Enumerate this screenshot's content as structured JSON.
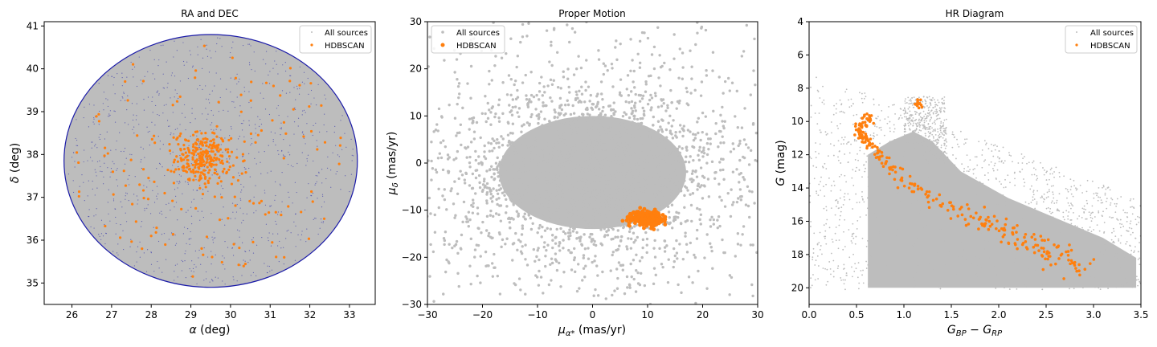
{
  "colors": {
    "all_sources": "#bdbdbd",
    "all_sources_edge_ra_dec": "#1a1aa8",
    "hdbscan": "#ff7f0e",
    "axes": "#000000",
    "background": "#ffffff"
  },
  "chart_data": [
    {
      "type": "scatter",
      "title": "RA and DEC",
      "xlabel": "α (deg)",
      "ylabel": "δ (deg)",
      "xlim": [
        25.3,
        33.65
      ],
      "ylim": [
        34.5,
        41.1
      ],
      "xticks": [
        26,
        27,
        28,
        29,
        30,
        31,
        32,
        33
      ],
      "yticks": [
        35,
        36,
        37,
        38,
        39,
        40,
        41
      ],
      "grid": false,
      "legend_position": "top-right",
      "series": [
        {
          "name": "All sources",
          "description": "dense uniform field filling a circular region",
          "center": [
            29.5,
            37.85
          ],
          "half_width_ra_deg": 3.7,
          "half_height_dec_deg": 2.95
        },
        {
          "name": "HDBSCAN",
          "cluster_center": [
            29.3,
            37.9
          ],
          "cluster_core_spread": [
            0.35,
            0.3
          ],
          "n_core_points": 260,
          "n_scattered_points": 130
        }
      ]
    },
    {
      "type": "scatter",
      "title": "Proper Motion",
      "xlabel": "μα* (mas/yr)",
      "ylabel": "μδ (mas/yr)",
      "xlim": [
        -30,
        30
      ],
      "ylim": [
        -30,
        30
      ],
      "xticks": [
        -30,
        -20,
        -10,
        0,
        10,
        20,
        30
      ],
      "yticks": [
        -30,
        -20,
        -10,
        0,
        10,
        20,
        30
      ],
      "grid": false,
      "legend_position": "top-left",
      "series": [
        {
          "name": "All sources",
          "description": "broad distribution centered near zero",
          "center": [
            0,
            -2
          ],
          "core_half_width": [
            17,
            12
          ]
        },
        {
          "name": "HDBSCAN",
          "cluster_center": [
            9.8,
            -11.6
          ],
          "cluster_spread": [
            1.3,
            0.7
          ]
        }
      ]
    },
    {
      "type": "scatter",
      "title": "HR Diagram",
      "xlabel": "G_BP − G_RP",
      "ylabel": "G (mag)",
      "xlim": [
        0.0,
        3.5
      ],
      "ylim": [
        21.0,
        4.0
      ],
      "y_inverted": true,
      "xticks": [
        0.0,
        0.5,
        1.0,
        1.5,
        2.0,
        2.5,
        3.0,
        3.5
      ],
      "yticks": [
        4,
        6,
        8,
        10,
        12,
        14,
        16,
        18,
        20
      ],
      "grid": false,
      "legend_position": "top-right",
      "series": [
        {
          "name": "All sources",
          "description": "field-star color-magnitude distribution, dense below G≈12 and left edge near BP−RP≈0.6"
        },
        {
          "name": "HDBSCAN",
          "main_sequence": [
            [
              0.5,
              10.3
            ],
            [
              0.55,
              10.8
            ],
            [
              0.6,
              11.2
            ],
            [
              0.7,
              11.8
            ],
            [
              0.8,
              12.4
            ],
            [
              0.95,
              13.2
            ],
            [
              1.1,
              13.9
            ],
            [
              1.3,
              14.6
            ],
            [
              1.5,
              15.1
            ],
            [
              1.7,
              15.6
            ],
            [
              1.9,
              16.2
            ],
            [
              2.1,
              16.7
            ],
            [
              2.3,
              17.3
            ],
            [
              2.5,
              17.8
            ],
            [
              2.7,
              18.4
            ],
            [
              2.9,
              18.8
            ]
          ],
          "turnoff_branch": [
            [
              0.55,
              10.5
            ],
            [
              0.6,
              10.1
            ],
            [
              0.65,
              9.8
            ]
          ],
          "red_clump_center": [
            1.15,
            9.0
          ]
        }
      ]
    }
  ],
  "panels": [
    {
      "title": "RA and DEC",
      "xlabel_sym": "α",
      "xlabel_rest": " (deg)",
      "ylabel_sym": "δ",
      "ylabel_rest": " (deg)",
      "legend": [
        "All sources",
        "HDBSCAN"
      ]
    },
    {
      "title": "Proper Motion",
      "xlabel_sym": "μ",
      "xlabel_sub": "α*",
      "xlabel_rest": " (mas/yr)",
      "ylabel_sym": "μ",
      "ylabel_sub": "δ",
      "ylabel_rest": " (mas/yr)",
      "legend": [
        "All sources",
        "HDBSCAN"
      ]
    },
    {
      "title": "HR Diagram",
      "xlabel_a": "G",
      "xlabel_a_sub": "BP",
      "xlabel_minus": " − ",
      "xlabel_b": "G",
      "xlabel_b_sub": "RP",
      "ylabel_sym": "G",
      "ylabel_rest": " (mag)",
      "legend": [
        "All sources",
        "HDBSCAN"
      ]
    }
  ]
}
